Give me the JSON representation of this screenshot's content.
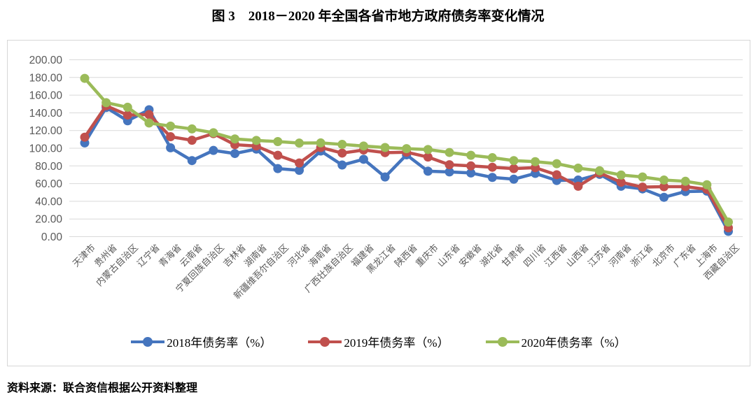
{
  "title": "图 3　2018－2020 年全国各省市地方政府债务率变化情况",
  "source_note": "资料来源：联合资信根据公开资料整理",
  "colors": {
    "series_2018": "#4575BE",
    "series_2019": "#C0504D",
    "series_2020": "#9BBB59",
    "gridline": "#D9D9D9",
    "axis_text": "#595959"
  },
  "chart_data": {
    "type": "line",
    "title": "图 3　2018－2020 年全国各省市地方政府债务率变化情况",
    "grid": true,
    "legend_position": "bottom",
    "ylim": [
      0,
      200
    ],
    "ytick_step": 20,
    "ytick_labels": [
      "0.00",
      "20.00",
      "40.00",
      "60.00",
      "80.00",
      "100.00",
      "120.00",
      "140.00",
      "160.00",
      "180.00",
      "200.00"
    ],
    "categories": [
      "天津市",
      "贵州省",
      "内蒙古自治区",
      "辽宁省",
      "青海省",
      "云南省",
      "宁夏回族自治区",
      "吉林省",
      "湖南省",
      "新疆维吾尔自治区",
      "河北省",
      "海南省",
      "广西壮族自治区",
      "福建省",
      "黑龙江省",
      "陕西省",
      "重庆市",
      "山东省",
      "安徽省",
      "湖北省",
      "甘肃省",
      "四川省",
      "江西省",
      "山西省",
      "江苏省",
      "河南省",
      "浙江省",
      "北京市",
      "广东省",
      "上海市",
      "西藏自治区"
    ],
    "series": [
      {
        "key": "2018",
        "name": "2018年债务率（%）",
        "color": "#4575BE",
        "values": [
          106.0,
          146.0,
          131.0,
          143.5,
          100.5,
          86.0,
          97.5,
          94.0,
          99.0,
          77.0,
          75.0,
          96.8,
          81.0,
          87.5,
          67.5,
          92.5,
          74.0,
          73.2,
          72.0,
          67.0,
          65.0,
          71.5,
          63.5,
          64.0,
          70.5,
          57.0,
          54.0,
          44.5,
          51.0,
          51.5,
          6.0
        ]
      },
      {
        "key": "2019",
        "name": "2019年债务率（%）",
        "color": "#C0504D",
        "values": [
          112.5,
          148.0,
          137.5,
          138.0,
          113.0,
          109.0,
          116.5,
          104.0,
          102.5,
          92.0,
          83.3,
          100.8,
          94.5,
          98.0,
          95.0,
          95.5,
          90.0,
          81.3,
          80.0,
          78.5,
          77.0,
          78.0,
          70.0,
          57.0,
          72.0,
          61.5,
          56.0,
          56.5,
          56.5,
          53.5,
          10.0
        ]
      },
      {
        "key": "2020",
        "name": "2020年债务率（%）",
        "color": "#9BBB59",
        "values": [
          179.0,
          151.5,
          146.3,
          128.5,
          125.0,
          121.8,
          117.5,
          110.5,
          108.8,
          107.5,
          105.8,
          106.0,
          104.3,
          102.5,
          100.8,
          99.5,
          98.5,
          95.2,
          92.0,
          89.3,
          86.0,
          84.8,
          82.5,
          77.5,
          74.5,
          69.7,
          67.5,
          64.0,
          62.6,
          58.7,
          16.5
        ]
      }
    ]
  }
}
